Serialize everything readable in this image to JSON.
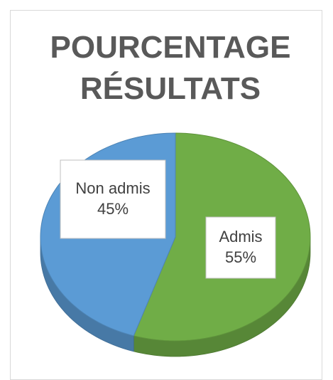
{
  "chart_data": {
    "type": "pie",
    "title": "POURCENTAGE RÉSULTATS",
    "categories": [
      "Non admis",
      "Admis"
    ],
    "values": [
      45,
      55
    ],
    "value_labels": [
      "45%",
      "55%"
    ],
    "colors": [
      "#5b9bd5",
      "#70ad47"
    ]
  }
}
